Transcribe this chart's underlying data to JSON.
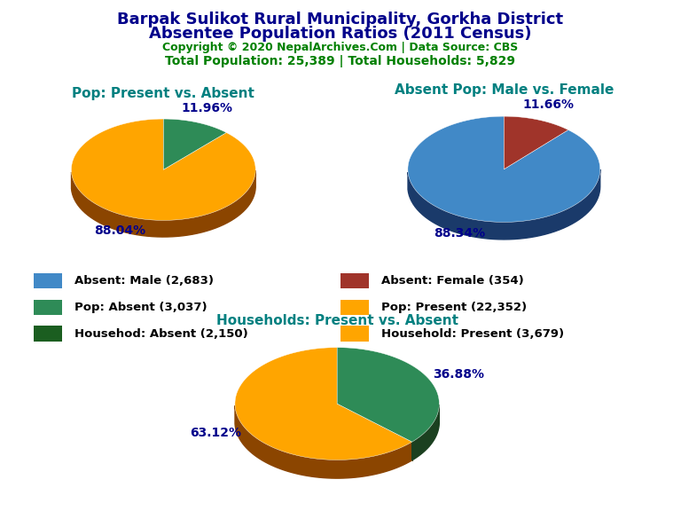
{
  "title_line1": "Barpak Sulikot Rural Municipality, Gorkha District",
  "title_line2": "Absentee Population Ratios (2011 Census)",
  "title_color": "#00008B",
  "copyright_text": "Copyright © 2020 NepalArchives.Com | Data Source: CBS",
  "copyright_color": "#008000",
  "stats_text": "Total Population: 25,389 | Total Households: 5,829",
  "stats_color": "#008000",
  "pie1_title": "Pop: Present vs. Absent",
  "pie1_values": [
    22352,
    3037
  ],
  "pie1_colors": [
    "#FFA500",
    "#2E8B57"
  ],
  "pie1_edge_colors": [
    "#8B4500",
    "#1B4020"
  ],
  "pie1_labels": [
    "88.04%",
    "11.96%"
  ],
  "pie1_startangle": 90,
  "pie2_title": "Absent Pop: Male vs. Female",
  "pie2_values": [
    2683,
    354
  ],
  "pie2_colors": [
    "#4189C7",
    "#A0342A"
  ],
  "pie2_edge_colors": [
    "#1A3A6A",
    "#6B1010"
  ],
  "pie2_labels": [
    "88.34%",
    "11.66%"
  ],
  "pie2_startangle": 90,
  "pie3_title": "Households: Present vs. Absent",
  "pie3_values": [
    3679,
    2150
  ],
  "pie3_colors": [
    "#FFA500",
    "#2E8B57"
  ],
  "pie3_edge_colors": [
    "#8B4500",
    "#1B4020"
  ],
  "pie3_labels": [
    "63.12%",
    "36.88%"
  ],
  "pie3_startangle": 90,
  "legend_items": [
    {
      "label": "Absent: Male (2,683)",
      "color": "#4189C7"
    },
    {
      "label": "Absent: Female (354)",
      "color": "#A0342A"
    },
    {
      "label": "Pop: Absent (3,037)",
      "color": "#2E8B57"
    },
    {
      "label": "Pop: Present (22,352)",
      "color": "#FFA500"
    },
    {
      "label": "Househod: Absent (2,150)",
      "color": "#1B5E20"
    },
    {
      "label": "Household: Present (3,679)",
      "color": "#FFA500"
    }
  ],
  "pie_title_color": "#008080",
  "pct_label_color": "#00008B",
  "background_color": "#FFFFFF"
}
